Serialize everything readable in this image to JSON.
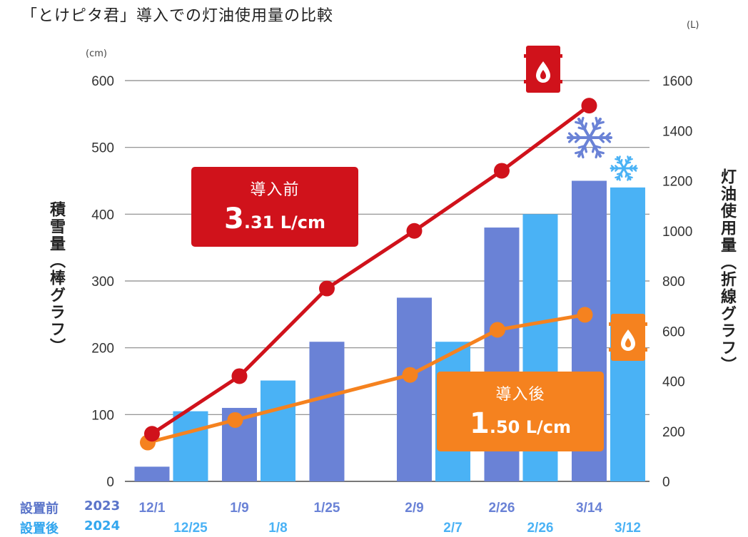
{
  "title": "「とけピタ君」導入での灯油使用量の比較",
  "left_axis": {
    "unit": "(cm)",
    "label": "積雪量（棒グラフ）"
  },
  "right_axis": {
    "unit": "(L)",
    "label": "灯油使用量（折線グラフ）"
  },
  "callouts": {
    "before": {
      "title": "導入前",
      "value_big": "3",
      "value_rest": ".31 L/cm"
    },
    "after": {
      "title": "導入後",
      "value_big": "1",
      "value_rest": ".50 L/cm"
    }
  },
  "rows": {
    "before": {
      "label": "設置前",
      "year": "2023"
    },
    "after": {
      "label": "設置後",
      "year": "2024"
    }
  },
  "colors": {
    "bar_before": "#6a82d6",
    "bar_after": "#4ab2f5",
    "line_before": "#d0121b",
    "line_after": "#f5821f",
    "grid": "#888888",
    "snow_dark": "#6a82d6",
    "snow_light": "#4ab2f5"
  },
  "icons": [
    "oil-drum-red-icon",
    "oil-drum-orange-icon",
    "snowflake-large-icon",
    "snowflake-small-icon"
  ],
  "chart_data": {
    "type": "bar+line",
    "left_ylim": [
      0,
      600
    ],
    "left_ticks": [
      0,
      100,
      200,
      300,
      400,
      500,
      600
    ],
    "right_ylim": [
      0,
      1600
    ],
    "right_ticks": [
      0,
      200,
      400,
      600,
      800,
      1000,
      1200,
      1400,
      1600
    ],
    "grid": true,
    "bar_series": [
      {
        "name": "設置前 2023",
        "dates": [
          "12/1",
          "1/9",
          "1/25",
          "2/9",
          "2/26",
          "3/14"
        ],
        "values": [
          22,
          110,
          209,
          275,
          380,
          450
        ]
      },
      {
        "name": "設置後 2024",
        "dates": [
          "12/25",
          "1/8",
          "",
          "2/7",
          "2/26",
          "3/12"
        ],
        "values": [
          105,
          151,
          null,
          209,
          400,
          440
        ]
      }
    ],
    "line_series": [
      {
        "name": "導入前",
        "values": [
          190,
          420,
          770,
          1000,
          1240,
          1500
        ]
      },
      {
        "name": "導入後",
        "values": [
          155,
          245,
          null,
          425,
          605,
          665
        ]
      }
    ]
  }
}
